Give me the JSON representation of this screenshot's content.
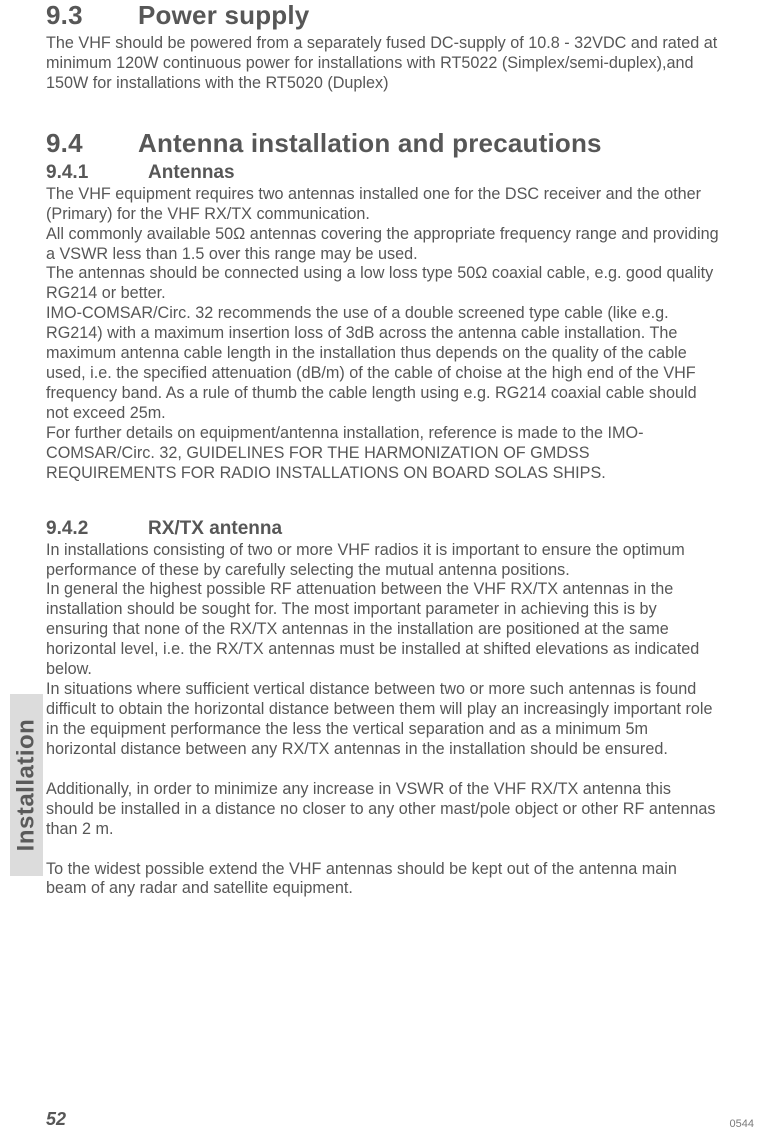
{
  "sections": {
    "s93": {
      "num": "9.3",
      "title": "Power supply",
      "body": "The VHF should be powered from a separately fused DC-supply of 10.8 - 32VDC and rated at minimum 120W continuous power for installations with RT5022 (Simplex/semi-duplex),and 150W for installations with the RT5020 (Duplex)"
    },
    "s94": {
      "num": "9.4",
      "title": "Antenna installation and precautions"
    },
    "s941": {
      "num": "9.4.1",
      "title": "Antennas",
      "p1": "The VHF equipment requires two antennas installed one for the DSC receiver and the other (Primary) for the VHF RX/TX communication.",
      "p2": "All commonly available 50Ω antennas covering the appropriate frequency range and providing a VSWR less than 1.5 over this range may be used.",
      "p3": "The antennas should be connected using a low loss type 50Ω  coaxial cable, e.g. good quality RG214 or better.",
      "p4": "IMO-COMSAR/Circ. 32 recommends the use of a double screened type cable (like e.g. RG214) with a maximum insertion loss of 3dB across the antenna cable installation. The maximum antenna cable length in the installation thus depends on the quality of the cable used, i.e. the specified attenuation (dB/m) of the cable of choise at the high end of the VHF frequency band. As a rule of thumb the cable length using e.g. RG214 coaxial cable should not exceed 25m.",
      "p5": "For further details on equipment/antenna installation, reference is made to the IMO-COMSAR/Circ. 32, GUIDELINES FOR THE HARMONIZATION OF GMDSS REQUIREMENTS FOR RADIO INSTALLATIONS ON BOARD SOLAS SHIPS."
    },
    "s942": {
      "num": "9.4.2",
      "title": "RX/TX antenna",
      "p1": "In installations consisting of two or more VHF  radios it is important to ensure the optimum performance of these by carefully selecting the mutual antenna positions.",
      "p2": "In general the highest possible RF attenuation between the VHF RX/TX antennas in the installation should be sought for. The most important parameter in achieving this is by ensuring that none of the RX/TX antennas in the installation are positioned at the same horizontal level, i.e. the RX/TX antennas must be installed at shifted elevations as indicated below.",
      "p3": "In situations where sufficient vertical distance between two or more such antennas is found difficult to obtain the horizontal distance between them will play an increasingly important role in the equipment performance the less the vertical separation and as a minimum 5m horizontal distance between any RX/TX antennas in the installation should be ensured.",
      "p4": "Additionally, in order to minimize any increase in VSWR of the VHF RX/TX antenna this should be installed in a distance no closer to any other mast/pole object or other RF antennas than 2 m.",
      "p5": "To the widest possible extend the VHF antennas should be kept out of the antenna main beam of any radar and satellite equipment."
    }
  },
  "sideTab": "Installation",
  "pageNumber": "52",
  "docCode": "0544"
}
